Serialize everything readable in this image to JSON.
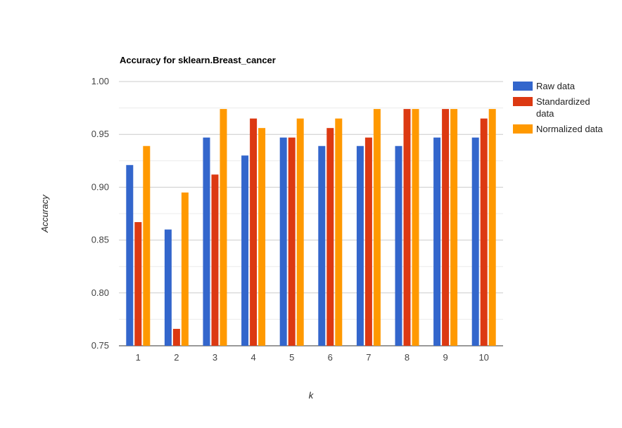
{
  "chart_data": {
    "type": "bar",
    "title": "Accuracy for sklearn.Breast_cancer",
    "xlabel": "k",
    "ylabel": "Accuracy",
    "ylim": [
      0.75,
      1.0
    ],
    "yticks": [
      "0.75",
      "0.80",
      "0.85",
      "0.90",
      "0.95",
      "1.00"
    ],
    "grid": true,
    "legend_position": "right",
    "categories": [
      "1",
      "2",
      "3",
      "4",
      "5",
      "6",
      "7",
      "8",
      "9",
      "10"
    ],
    "series": [
      {
        "name": "Raw data",
        "color": "#3366cc",
        "values": [
          0.921,
          0.86,
          0.947,
          0.93,
          0.947,
          0.939,
          0.939,
          0.939,
          0.947,
          0.947
        ]
      },
      {
        "name": "Standardized data",
        "name_lines": [
          "Standardized",
          "data"
        ],
        "color": "#dc3912",
        "values": [
          0.867,
          0.766,
          0.912,
          0.965,
          0.947,
          0.956,
          0.947,
          0.974,
          0.974,
          0.965
        ]
      },
      {
        "name": "Normalized data",
        "color": "#ff9900",
        "values": [
          0.939,
          0.895,
          0.974,
          0.956,
          0.965,
          0.965,
          0.974,
          0.974,
          0.974,
          0.974
        ]
      }
    ]
  }
}
